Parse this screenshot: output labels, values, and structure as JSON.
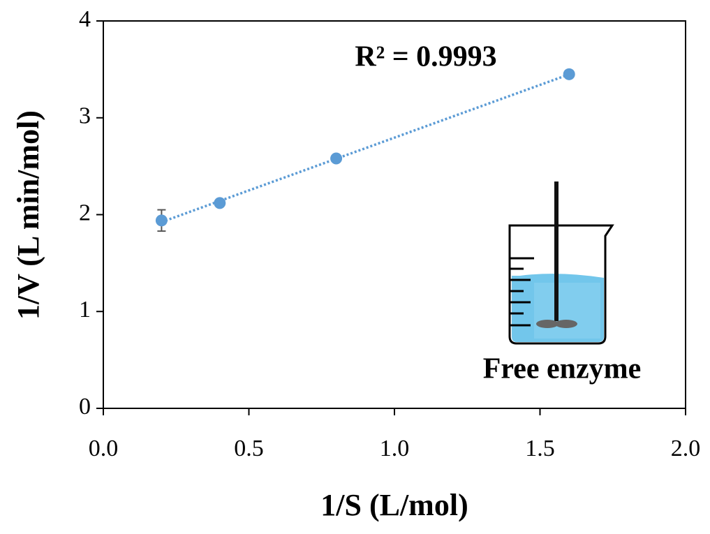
{
  "chart_data": {
    "type": "scatter",
    "x": [
      0.2,
      0.4,
      0.8,
      1.6
    ],
    "values": [
      1.94,
      2.12,
      2.58,
      3.45
    ],
    "errors": [
      0.11,
      0.03,
      0.03,
      0.02
    ],
    "color": "#5b9bd5",
    "trendline": "linear",
    "annotation": "R² = 0.9993",
    "inset_label": "Free enzyme",
    "xlabel": "1/S (L/mol)",
    "ylabel": "1/V (L min/mol)",
    "xlim": [
      0,
      2.0
    ],
    "ylim": [
      0,
      4
    ],
    "xticks": [
      {
        "value": 0,
        "label": "0.0"
      },
      {
        "value": 0.5,
        "label": "0.5"
      },
      {
        "value": 1.0,
        "label": "1.0"
      },
      {
        "value": 1.5,
        "label": "1.5"
      },
      {
        "value": 2.0,
        "label": "2.0"
      }
    ],
    "yticks": [
      0,
      1,
      2,
      3,
      4
    ]
  }
}
